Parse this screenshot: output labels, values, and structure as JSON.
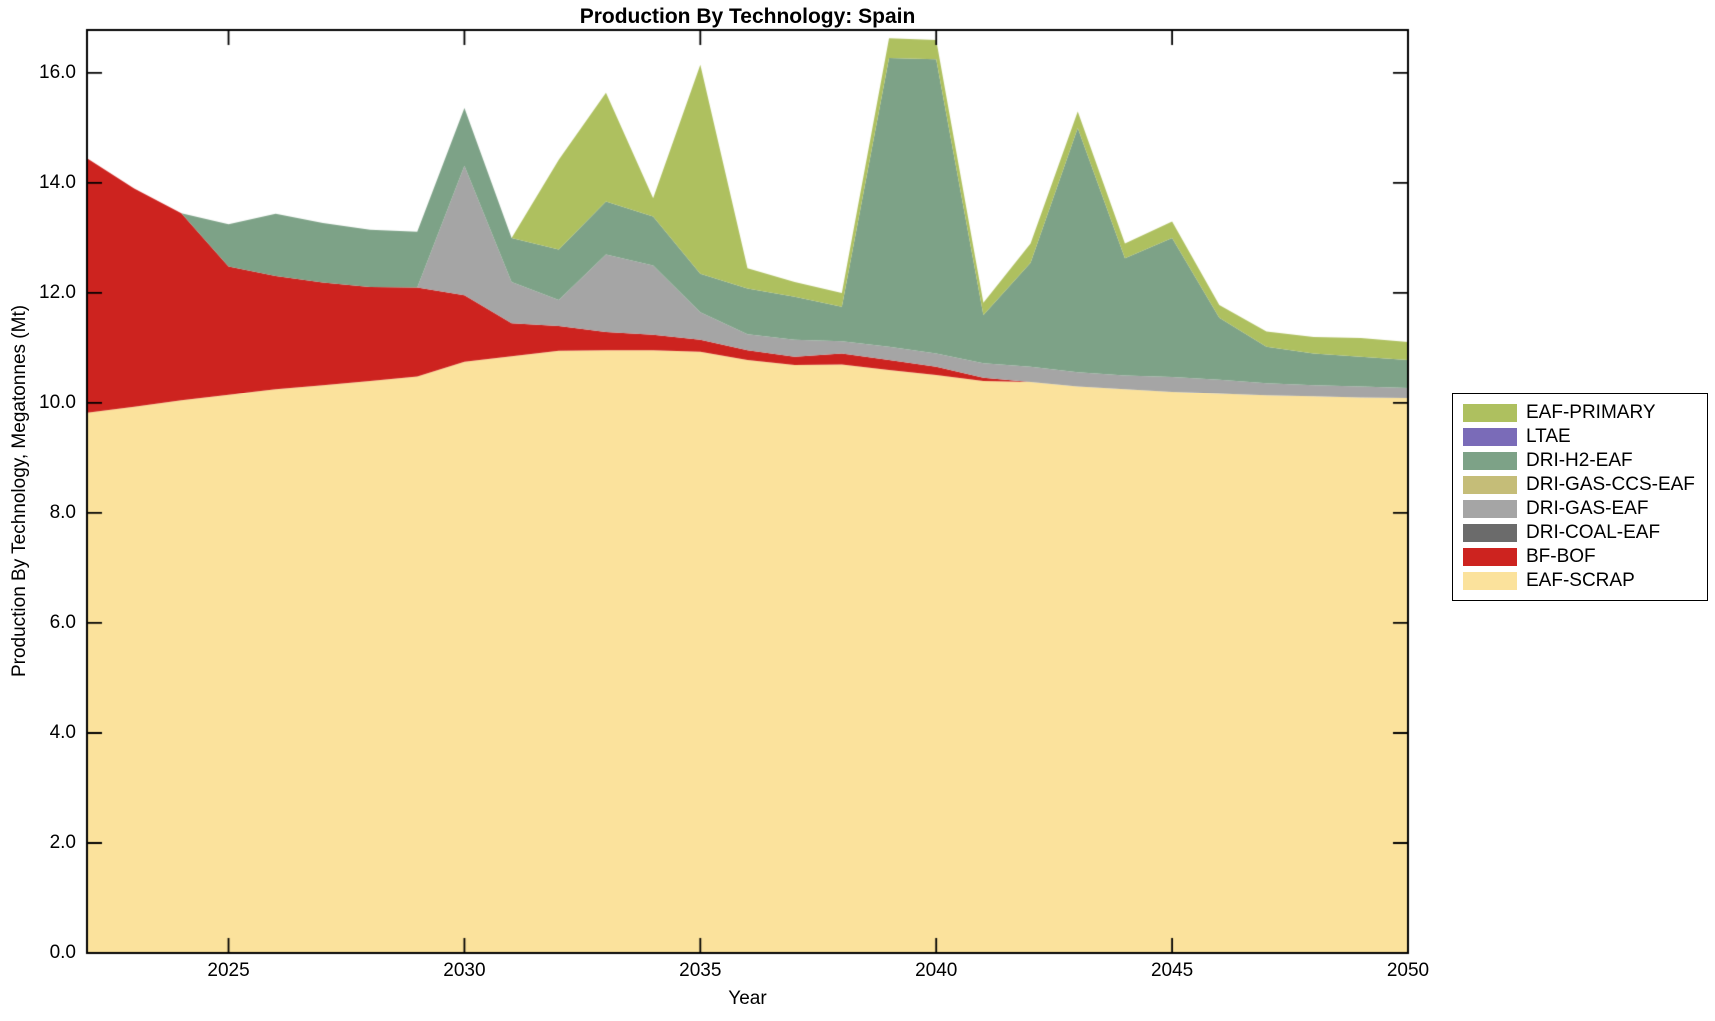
{
  "figure": {
    "title": "Production By Technology: Spain"
  },
  "axes": {
    "xlabel": "Year",
    "ylabel": "Production By Technology, Megatonnes (Mt)",
    "xtick_labels": [
      "2025",
      "2030",
      "2035",
      "2040",
      "2045",
      "2050"
    ],
    "ytick_labels": [
      "0.0",
      "2.0",
      "4.0",
      "6.0",
      "8.0",
      "10.0",
      "12.0",
      "14.0",
      "16.0"
    ]
  },
  "legend": {
    "items": [
      {
        "label": "EAF-PRIMARY",
        "color": "#aec05f"
      },
      {
        "label": "LTAE",
        "color": "#7a6bb8"
      },
      {
        "label": "DRI-H2-EAF",
        "color": "#7da287"
      },
      {
        "label": "DRI-GAS-CCS-EAF",
        "color": "#c5bd78"
      },
      {
        "label": "DRI-GAS-EAF",
        "color": "#a5a5a5"
      },
      {
        "label": "DRI-COAL-EAF",
        "color": "#6b6b6b"
      },
      {
        "label": "BF-BOF",
        "color": "#cd231f"
      },
      {
        "label": "EAF-SCRAP",
        "color": "#fbe29c"
      }
    ]
  },
  "chart_data": {
    "type": "area",
    "stacked": true,
    "title": "Production By Technology: Spain",
    "xlabel": "Year",
    "ylabel": "Production By Technology, Megatonnes (Mt)",
    "legend_position": "right-outside",
    "grid": false,
    "xlim": [
      2022,
      2050
    ],
    "ylim": [
      0,
      16.78
    ],
    "xtick_values": [
      2025,
      2030,
      2035,
      2040,
      2045,
      2050
    ],
    "ytick_values": [
      0,
      2,
      4,
      6,
      8,
      10,
      12,
      14,
      16
    ],
    "x": [
      2022,
      2023,
      2024,
      2025,
      2026,
      2027,
      2028,
      2029,
      2030,
      2031,
      2032,
      2033,
      2034,
      2035,
      2036,
      2037,
      2038,
      2039,
      2040,
      2041,
      2042,
      2043,
      2044,
      2045,
      2046,
      2047,
      2048,
      2049,
      2050
    ],
    "series_bottom_to_top": [
      {
        "name": "EAF-SCRAP",
        "color": "#fbe29c",
        "values": [
          9.82,
          9.93,
          10.05,
          10.15,
          10.25,
          10.32,
          10.4,
          10.48,
          10.75,
          10.85,
          10.95,
          10.96,
          10.96,
          10.93,
          10.78,
          10.69,
          10.7,
          10.6,
          10.51,
          10.4,
          10.38,
          10.3,
          10.25,
          10.2,
          10.17,
          10.14,
          10.12,
          10.1,
          10.09
        ]
      },
      {
        "name": "BF-BOF",
        "color": "#cd231f",
        "values": [
          4.63,
          3.97,
          3.4,
          2.33,
          2.06,
          1.87,
          1.71,
          1.62,
          1.21,
          0.6,
          0.45,
          0.33,
          0.28,
          0.22,
          0.18,
          0.15,
          0.2,
          0.18,
          0.15,
          0.06,
          0,
          0,
          0,
          0,
          0,
          0,
          0,
          0,
          0
        ]
      },
      {
        "name": "DRI-COAL-EAF",
        "color": "#6b6b6b",
        "values": [
          0,
          0,
          0,
          0,
          0,
          0,
          0,
          0,
          0,
          0,
          0,
          0,
          0,
          0,
          0,
          0,
          0,
          0,
          0,
          0,
          0,
          0,
          0,
          0,
          0,
          0,
          0,
          0,
          0
        ]
      },
      {
        "name": "DRI-GAS-EAF",
        "color": "#a5a5a5",
        "values": [
          0,
          0,
          0,
          0,
          0,
          0,
          0,
          0,
          2.35,
          0.75,
          0.47,
          1.41,
          1.26,
          0.5,
          0.29,
          0.31,
          0.22,
          0.24,
          0.24,
          0.26,
          0.28,
          0.26,
          0.25,
          0.27,
          0.25,
          0.22,
          0.2,
          0.2,
          0.18
        ]
      },
      {
        "name": "DRI-GAS-CCS-EAF",
        "color": "#c5bd78",
        "values": [
          0,
          0,
          0,
          0,
          0,
          0,
          0,
          0,
          0,
          0,
          0,
          0,
          0,
          0,
          0,
          0,
          0,
          0,
          0,
          0,
          0,
          0,
          0,
          0,
          0,
          0,
          0,
          0,
          0
        ]
      },
      {
        "name": "DRI-H2-EAF",
        "color": "#7da287",
        "values": [
          0,
          0,
          0,
          0.77,
          1.13,
          1.08,
          1.04,
          1.01,
          1.05,
          0.8,
          0.92,
          0.96,
          0.89,
          0.7,
          0.83,
          0.78,
          0.63,
          5.25,
          5.35,
          0.88,
          1.89,
          4.44,
          2.13,
          2.53,
          1.13,
          0.66,
          0.58,
          0.54,
          0.51
        ]
      },
      {
        "name": "LTAE",
        "color": "#7a6bb8",
        "values": [
          0,
          0,
          0,
          0,
          0,
          0,
          0,
          0,
          0,
          0,
          0,
          0,
          0,
          0,
          0,
          0,
          0,
          0,
          0,
          0,
          0,
          0,
          0,
          0,
          0,
          0,
          0,
          0,
          0
        ]
      },
      {
        "name": "EAF-PRIMARY",
        "color": "#aec05f",
        "values": [
          0,
          0,
          0,
          0,
          0,
          0,
          0,
          0,
          0,
          0,
          1.63,
          1.98,
          0.33,
          3.8,
          0.37,
          0.27,
          0.25,
          0.36,
          0.35,
          0.22,
          0.35,
          0.3,
          0.27,
          0.3,
          0.23,
          0.28,
          0.3,
          0.34,
          0.33
        ]
      }
    ]
  }
}
